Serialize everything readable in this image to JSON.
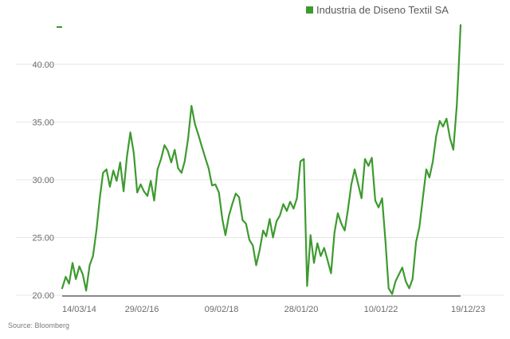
{
  "chart_data": {
    "type": "line",
    "title": "",
    "xlabel": "",
    "ylabel": "",
    "legend_position": "top-right",
    "grid": {
      "horizontal": true,
      "vertical": false
    },
    "x_start_date": "2014-03-14",
    "x_end_date": "2023-12-19",
    "ylim": [
      20.0,
      43.5
    ],
    "y_ticks": [
      "20.00",
      "25.00",
      "30.00",
      "35.00",
      "40.00"
    ],
    "y_tick_values": [
      20,
      25,
      30,
      35,
      40
    ],
    "x_tick_labels": [
      "14/03/14",
      "29/02/16",
      "09/02/18",
      "28/01/20",
      "10/01/22",
      "19/12/23"
    ],
    "series": [
      {
        "name": "Industria de Diseno Textil SA",
        "color": "#3d9a2f",
        "points": [
          [
            "2014-03-14",
            20.6
          ],
          [
            "2014-04-15",
            21.6
          ],
          [
            "2014-05-15",
            21.0
          ],
          [
            "2014-06-15",
            22.8
          ],
          [
            "2014-07-15",
            21.4
          ],
          [
            "2014-08-15",
            22.5
          ],
          [
            "2014-09-15",
            21.8
          ],
          [
            "2014-10-15",
            20.4
          ],
          [
            "2014-11-15",
            22.6
          ],
          [
            "2014-12-15",
            23.4
          ],
          [
            "2015-01-15",
            25.6
          ],
          [
            "2015-02-15",
            28.5
          ],
          [
            "2015-03-15",
            30.6
          ],
          [
            "2015-04-15",
            30.9
          ],
          [
            "2015-05-15",
            29.4
          ],
          [
            "2015-06-15",
            30.8
          ],
          [
            "2015-07-15",
            29.9
          ],
          [
            "2015-08-15",
            31.5
          ],
          [
            "2015-09-15",
            29.0
          ],
          [
            "2015-10-15",
            32.0
          ],
          [
            "2015-11-15",
            34.1
          ],
          [
            "2015-12-15",
            32.3
          ],
          [
            "2016-01-15",
            28.9
          ],
          [
            "2016-02-15",
            29.6
          ],
          [
            "2016-03-15",
            29.0
          ],
          [
            "2016-04-15",
            28.6
          ],
          [
            "2016-05-15",
            29.9
          ],
          [
            "2016-06-15",
            28.2
          ],
          [
            "2016-07-15",
            30.9
          ],
          [
            "2016-08-15",
            31.8
          ],
          [
            "2016-09-15",
            33.0
          ],
          [
            "2016-10-15",
            32.5
          ],
          [
            "2016-11-15",
            31.5
          ],
          [
            "2016-12-15",
            32.6
          ],
          [
            "2017-01-15",
            31.0
          ],
          [
            "2017-02-15",
            30.6
          ],
          [
            "2017-03-15",
            31.6
          ],
          [
            "2017-04-15",
            33.6
          ],
          [
            "2017-05-15",
            36.4
          ],
          [
            "2017-06-15",
            34.8
          ],
          [
            "2017-07-15",
            33.9
          ],
          [
            "2017-08-15",
            32.9
          ],
          [
            "2017-09-15",
            31.9
          ],
          [
            "2017-10-15",
            31.0
          ],
          [
            "2017-11-15",
            29.5
          ],
          [
            "2017-12-15",
            29.6
          ],
          [
            "2018-01-15",
            28.9
          ],
          [
            "2018-02-15",
            26.6
          ],
          [
            "2018-03-15",
            25.2
          ],
          [
            "2018-04-15",
            26.9
          ],
          [
            "2018-05-15",
            27.9
          ],
          [
            "2018-06-15",
            28.8
          ],
          [
            "2018-07-15",
            28.5
          ],
          [
            "2018-08-15",
            26.5
          ],
          [
            "2018-09-15",
            26.2
          ],
          [
            "2018-10-15",
            24.8
          ],
          [
            "2018-11-15",
            24.3
          ],
          [
            "2018-12-15",
            22.6
          ],
          [
            "2019-01-15",
            23.9
          ],
          [
            "2019-02-15",
            25.6
          ],
          [
            "2019-03-15",
            25.1
          ],
          [
            "2019-04-15",
            26.6
          ],
          [
            "2019-05-15",
            25.0
          ],
          [
            "2019-06-15",
            26.4
          ],
          [
            "2019-07-15",
            26.9
          ],
          [
            "2019-08-15",
            27.9
          ],
          [
            "2019-09-15",
            27.3
          ],
          [
            "2019-10-15",
            28.1
          ],
          [
            "2019-11-15",
            27.5
          ],
          [
            "2019-12-15",
            28.4
          ],
          [
            "2020-01-15",
            31.6
          ],
          [
            "2020-02-15",
            31.8
          ],
          [
            "2020-03-15",
            20.8
          ],
          [
            "2020-04-15",
            25.2
          ],
          [
            "2020-05-15",
            22.8
          ],
          [
            "2020-06-15",
            24.5
          ],
          [
            "2020-07-15",
            23.4
          ],
          [
            "2020-08-15",
            24.1
          ],
          [
            "2020-09-15",
            23.0
          ],
          [
            "2020-10-15",
            21.9
          ],
          [
            "2020-11-15",
            25.4
          ],
          [
            "2020-12-15",
            27.1
          ],
          [
            "2021-01-15",
            26.2
          ],
          [
            "2021-02-15",
            25.6
          ],
          [
            "2021-03-15",
            27.4
          ],
          [
            "2021-04-15",
            29.6
          ],
          [
            "2021-05-15",
            30.9
          ],
          [
            "2021-06-15",
            29.6
          ],
          [
            "2021-07-15",
            28.4
          ],
          [
            "2021-08-15",
            31.8
          ],
          [
            "2021-09-15",
            31.2
          ],
          [
            "2021-10-15",
            31.9
          ],
          [
            "2021-11-15",
            28.2
          ],
          [
            "2021-12-15",
            27.6
          ],
          [
            "2022-01-15",
            28.4
          ],
          [
            "2022-02-15",
            24.6
          ],
          [
            "2022-03-15",
            20.6
          ],
          [
            "2022-04-15",
            20.1
          ],
          [
            "2022-05-15",
            21.2
          ],
          [
            "2022-06-15",
            21.8
          ],
          [
            "2022-07-15",
            22.4
          ],
          [
            "2022-08-15",
            21.2
          ],
          [
            "2022-09-15",
            20.6
          ],
          [
            "2022-10-15",
            21.4
          ],
          [
            "2022-11-15",
            24.6
          ],
          [
            "2022-12-15",
            25.9
          ],
          [
            "2023-01-15",
            28.4
          ],
          [
            "2023-02-15",
            30.9
          ],
          [
            "2023-03-15",
            30.2
          ],
          [
            "2023-04-15",
            31.6
          ],
          [
            "2023-05-15",
            33.8
          ],
          [
            "2023-06-15",
            35.1
          ],
          [
            "2023-07-15",
            34.6
          ],
          [
            "2023-08-15",
            35.3
          ],
          [
            "2023-09-15",
            33.6
          ],
          [
            "2023-10-15",
            32.6
          ],
          [
            "2023-11-15",
            36.4
          ],
          [
            "2023-12-01",
            39.6
          ],
          [
            "2023-12-10",
            41.4
          ],
          [
            "2023-12-19",
            43.4
          ]
        ]
      }
    ]
  },
  "footer": {
    "source": "Source: Bloomberg"
  }
}
